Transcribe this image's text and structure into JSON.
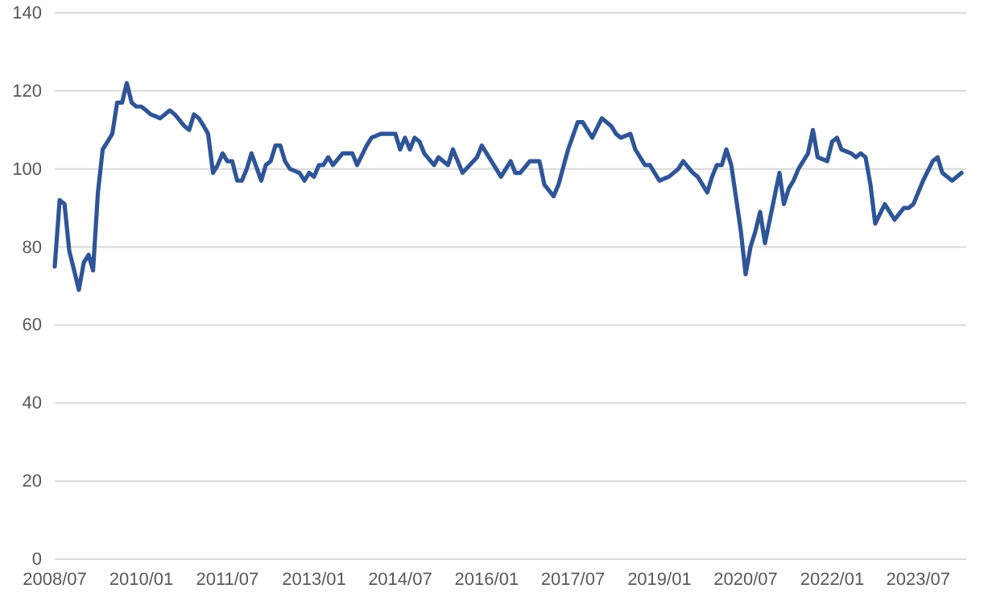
{
  "chart_data": {
    "type": "line",
    "grid": "y",
    "marker": "none",
    "line_style": "solid",
    "xlim": [
      "2008-07",
      "2024-05"
    ],
    "ylim": [
      0,
      140
    ],
    "yticks": [
      0,
      20,
      40,
      60,
      80,
      100,
      120,
      140
    ],
    "xticks": [
      {
        "value": "2008-07",
        "label": "2008/07"
      },
      {
        "value": "2010-01",
        "label": "2010/01"
      },
      {
        "value": "2011-07",
        "label": "2011/07"
      },
      {
        "value": "2013-01",
        "label": "2013/01"
      },
      {
        "value": "2014-07",
        "label": "2014/07"
      },
      {
        "value": "2016-01",
        "label": "2016/01"
      },
      {
        "value": "2017-07",
        "label": "2017/07"
      },
      {
        "value": "2019-01",
        "label": "2019/01"
      },
      {
        "value": "2020-07",
        "label": "2020/07"
      },
      {
        "value": "2022-01",
        "label": "2022/01"
      },
      {
        "value": "2023-07",
        "label": "2023/07"
      }
    ],
    "x": [
      "2008-07",
      "2008-08",
      "2008-09",
      "2008-10",
      "2008-11",
      "2008-12",
      "2009-01",
      "2009-02",
      "2009-03",
      "2009-04",
      "2009-05",
      "2009-06",
      "2009-07",
      "2009-08",
      "2009-09",
      "2009-10",
      "2009-11",
      "2009-12",
      "2010-01",
      "2010-02",
      "2010-03",
      "2010-05",
      "2010-07",
      "2010-08",
      "2010-10",
      "2010-11",
      "2010-12",
      "2011-01",
      "2011-02",
      "2011-03",
      "2011-04",
      "2011-05",
      "2011-06",
      "2011-07",
      "2011-08",
      "2011-09",
      "2011-10",
      "2011-11",
      "2011-12",
      "2012-02",
      "2012-03",
      "2012-04",
      "2012-05",
      "2012-06",
      "2012-07",
      "2012-08",
      "2012-10",
      "2012-11",
      "2012-12",
      "2013-01",
      "2013-02",
      "2013-03",
      "2013-04",
      "2013-05",
      "2013-07",
      "2013-09",
      "2013-10",
      "2013-12",
      "2014-01",
      "2014-03",
      "2014-05",
      "2014-06",
      "2014-07",
      "2014-08",
      "2014-09",
      "2014-10",
      "2014-11",
      "2014-12",
      "2015-02",
      "2015-03",
      "2015-05",
      "2015-06",
      "2015-08",
      "2015-11",
      "2015-12",
      "2016-04",
      "2016-06",
      "2016-07",
      "2016-08",
      "2016-10",
      "2016-12",
      "2017-01",
      "2017-03",
      "2017-04",
      "2017-06",
      "2017-08",
      "2017-09",
      "2017-11",
      "2018-01",
      "2018-03",
      "2018-04",
      "2018-05",
      "2018-07",
      "2018-08",
      "2018-10",
      "2018-11",
      "2019-01",
      "2019-03",
      "2019-05",
      "2019-06",
      "2019-08",
      "2019-09",
      "2019-11",
      "2019-12",
      "2020-01",
      "2020-02",
      "2020-03",
      "2020-04",
      "2020-06",
      "2020-07",
      "2020-08",
      "2020-09",
      "2020-10",
      "2020-11",
      "2021-01",
      "2021-02",
      "2021-03",
      "2021-04",
      "2021-05",
      "2021-06",
      "2021-08",
      "2021-09",
      "2021-10",
      "2021-12",
      "2022-01",
      "2022-02",
      "2022-03",
      "2022-05",
      "2022-06",
      "2022-07",
      "2022-08",
      "2022-09",
      "2022-10",
      "2022-12",
      "2023-02",
      "2023-04",
      "2023-05",
      "2023-06",
      "2023-08",
      "2023-10",
      "2023-11",
      "2023-12",
      "2024-02",
      "2024-04"
    ],
    "series": [
      {
        "color": "#2f5597",
        "values": [
          75,
          92,
          91,
          79,
          74,
          69,
          76,
          78,
          74,
          94,
          105,
          107,
          109,
          117,
          117,
          122,
          117,
          116,
          116,
          115,
          114,
          113,
          115,
          114,
          111,
          110,
          114,
          113,
          111,
          109,
          99,
          101,
          104,
          102,
          102,
          97,
          97,
          100,
          104,
          97,
          101,
          102,
          106,
          106,
          102,
          100,
          99,
          97,
          99,
          98,
          101,
          101,
          103,
          101,
          104,
          104,
          101,
          106,
          108,
          109,
          109,
          109,
          105,
          108,
          105,
          108,
          107,
          104,
          101,
          103,
          101,
          105,
          99,
          103,
          106,
          98,
          102,
          99,
          99,
          102,
          102,
          96,
          93,
          96,
          105,
          112,
          112,
          108,
          113,
          111,
          109,
          108,
          109,
          105,
          101,
          101,
          97,
          98,
          100,
          102,
          99,
          98,
          94,
          98,
          101,
          101,
          105,
          101,
          84,
          73,
          80,
          84,
          89,
          81,
          93,
          99,
          91,
          95,
          97,
          100,
          104,
          110,
          103,
          102,
          107,
          108,
          105,
          104,
          103,
          104,
          103,
          96,
          86,
          91,
          87,
          90,
          90,
          91,
          97,
          102,
          103,
          99,
          97,
          99
        ]
      }
    ]
  }
}
